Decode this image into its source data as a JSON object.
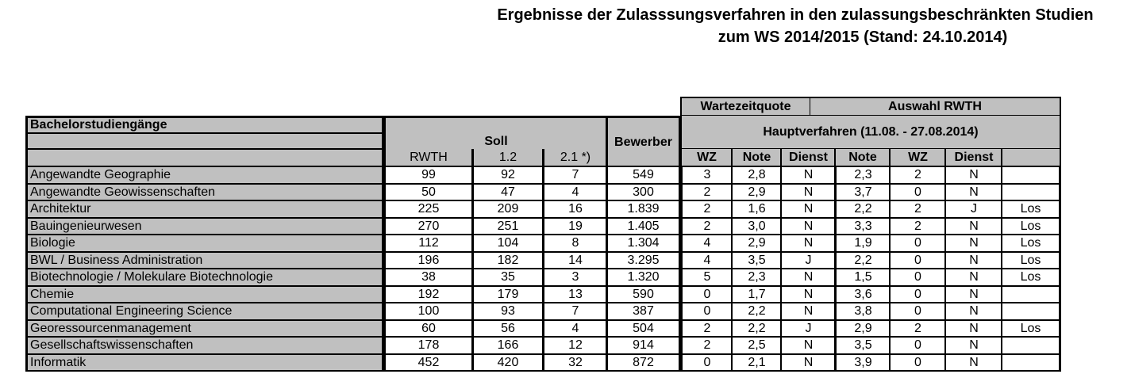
{
  "title": {
    "line1": "Ergebnisse der Zulasssungsverfahren in den zulassungsbeschränkten Studien",
    "line2": "zum WS 2014/2015 (Stand: 24.10.2014)"
  },
  "header": {
    "section_label": "Bachelorstudiengänge",
    "soll": "Soll",
    "soll_cols": [
      "RWTH",
      "1.2",
      "2.1 *)"
    ],
    "bewerber": "Bewerber",
    "wartezeitquote": "Wartezeitquote",
    "auswahl_rwth": "Auswahl RWTH",
    "hauptverfahren": "Hauptverfahren (11.08. - 27.08.2014)",
    "sub_cols": [
      "WZ",
      "Note",
      "Dienst",
      "Note",
      "WZ",
      "Dienst",
      ""
    ]
  },
  "rows": [
    {
      "name": "Angewandte Geographie",
      "rwth": "99",
      "q12": "92",
      "q21": "7",
      "bewerber": "549",
      "wz1": "3",
      "note1": "2,8",
      "dienst1": "N",
      "note2": "2,3",
      "wz2": "2",
      "dienst2": "N",
      "los": ""
    },
    {
      "name": "Angewandte Geowissenschaften",
      "rwth": "50",
      "q12": "47",
      "q21": "4",
      "bewerber": "300",
      "wz1": "2",
      "note1": "2,9",
      "dienst1": "N",
      "note2": "3,7",
      "wz2": "0",
      "dienst2": "N",
      "los": ""
    },
    {
      "name": "Architektur",
      "rwth": "225",
      "q12": "209",
      "q21": "16",
      "bewerber": "1.839",
      "wz1": "2",
      "note1": "1,6",
      "dienst1": "N",
      "note2": "2,2",
      "wz2": "2",
      "dienst2": "J",
      "los": "Los"
    },
    {
      "name": "Bauingenieurwesen",
      "rwth": "270",
      "q12": "251",
      "q21": "19",
      "bewerber": "1.405",
      "wz1": "2",
      "note1": "3,0",
      "dienst1": "N",
      "note2": "3,3",
      "wz2": "2",
      "dienst2": "N",
      "los": "Los"
    },
    {
      "name": "Biologie",
      "rwth": "112",
      "q12": "104",
      "q21": "8",
      "bewerber": "1.304",
      "wz1": "4",
      "note1": "2,9",
      "dienst1": "N",
      "note2": "1,9",
      "wz2": "0",
      "dienst2": "N",
      "los": "Los"
    },
    {
      "name": "BWL / Business Administration",
      "rwth": "196",
      "q12": "182",
      "q21": "14",
      "bewerber": "3.295",
      "wz1": "4",
      "note1": "3,5",
      "dienst1": "J",
      "note2": "2,2",
      "wz2": "0",
      "dienst2": "N",
      "los": "Los"
    },
    {
      "name": "Biotechnologie / Molekulare Biotechnologie",
      "rwth": "38",
      "q12": "35",
      "q21": "3",
      "bewerber": "1.320",
      "wz1": "5",
      "note1": "2,3",
      "dienst1": "N",
      "note2": "1,5",
      "wz2": "0",
      "dienst2": "N",
      "los": "Los"
    },
    {
      "name": "Chemie",
      "rwth": "192",
      "q12": "179",
      "q21": "13",
      "bewerber": "590",
      "wz1": "0",
      "note1": "1,7",
      "dienst1": "N",
      "note2": "3,6",
      "wz2": "0",
      "dienst2": "N",
      "los": ""
    },
    {
      "name": "Computational Engineering Science",
      "rwth": "100",
      "q12": "93",
      "q21": "7",
      "bewerber": "387",
      "wz1": "0",
      "note1": "2,2",
      "dienst1": "N",
      "note2": "3,8",
      "wz2": "0",
      "dienst2": "N",
      "los": ""
    },
    {
      "name": "Georessourcenmanagement",
      "rwth": "60",
      "q12": "56",
      "q21": "4",
      "bewerber": "504",
      "wz1": "2",
      "note1": "2,2",
      "dienst1": "J",
      "note2": "2,9",
      "wz2": "2",
      "dienst2": "N",
      "los": "Los"
    },
    {
      "name": "Gesellschaftswissenschaften",
      "rwth": "178",
      "q12": "166",
      "q21": "12",
      "bewerber": "914",
      "wz1": "2",
      "note1": "2,5",
      "dienst1": "N",
      "note2": "3,5",
      "wz2": "0",
      "dienst2": "N",
      "los": ""
    },
    {
      "name": "Informatik",
      "rwth": "452",
      "q12": "420",
      "q21": "32",
      "bewerber": "872",
      "wz1": "0",
      "note1": "2,1",
      "dienst1": "N",
      "note2": "3,9",
      "wz2": "0",
      "dienst2": "N",
      "los": ""
    }
  ]
}
